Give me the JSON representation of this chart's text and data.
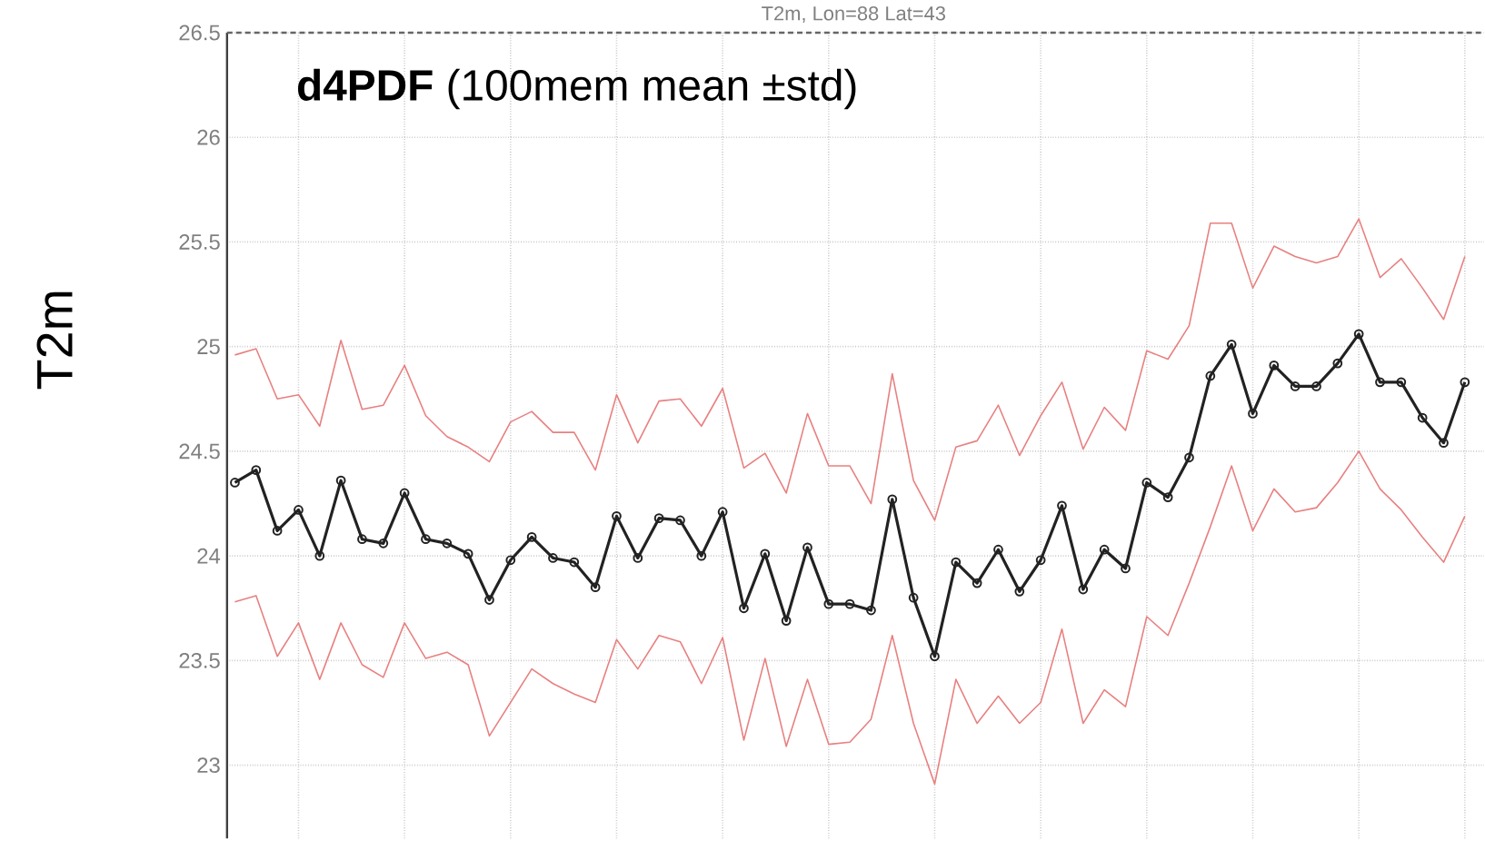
{
  "chart_data": {
    "type": "line",
    "title": "T2m, Lon=88  Lat=43",
    "ylabel": "T2m",
    "annotations": [
      "**d4PDF** (100mem mean ±std)"
    ],
    "categories": [
      null,
      null,
      null,
      null,
      null,
      null,
      null,
      null,
      null,
      null,
      null,
      null,
      null,
      null,
      null,
      null,
      null,
      null,
      null,
      null,
      null,
      null,
      null,
      null,
      null,
      null,
      null,
      null,
      null,
      null,
      null,
      null,
      null,
      null,
      null,
      null,
      null,
      null,
      null,
      null,
      null,
      null,
      null,
      null,
      null,
      null,
      null,
      null,
      null,
      null,
      null,
      null,
      null,
      null,
      null,
      null,
      null,
      null,
      null
    ],
    "ylim": [
      22.65,
      26.5
    ],
    "yticks": [
      23,
      23.5,
      24,
      24.5,
      25,
      25.5,
      26,
      26.5
    ],
    "grid": true,
    "series": [
      {
        "color": "#e88080",
        "marker": "none",
        "values": [
          24.96,
          24.99,
          24.75,
          24.77,
          24.62,
          25.03,
          24.7,
          24.72,
          24.91,
          24.67,
          24.57,
          24.52,
          24.45,
          24.64,
          24.69,
          24.59,
          24.59,
          24.41,
          24.77,
          24.54,
          24.74,
          24.75,
          24.62,
          24.8,
          24.42,
          24.49,
          24.3,
          24.68,
          24.43,
          24.43,
          24.25,
          24.87,
          24.36,
          24.17,
          24.52,
          24.55,
          24.72,
          24.48,
          24.67,
          24.83,
          24.51,
          24.71,
          24.6,
          24.98,
          24.94,
          25.1,
          25.59,
          25.59,
          25.28,
          25.48,
          25.43,
          25.4,
          25.43,
          25.61,
          25.33,
          25.42,
          25.28,
          25.13,
          25.43
        ]
      },
      {
        "color": "#e88080",
        "marker": "none",
        "values": [
          23.78,
          23.81,
          23.52,
          23.68,
          23.41,
          23.68,
          23.48,
          23.42,
          23.68,
          23.51,
          23.54,
          23.48,
          23.14,
          23.3,
          23.46,
          23.39,
          23.34,
          23.3,
          23.6,
          23.46,
          23.62,
          23.59,
          23.39,
          23.61,
          23.12,
          23.51,
          23.09,
          23.41,
          23.1,
          23.11,
          23.22,
          23.62,
          23.2,
          22.91,
          23.41,
          23.2,
          23.33,
          23.2,
          23.3,
          23.65,
          23.2,
          23.36,
          23.28,
          23.71,
          23.62,
          23.87,
          24.14,
          24.43,
          24.12,
          24.32,
          24.21,
          24.23,
          24.35,
          24.5,
          24.32,
          24.22,
          24.09,
          23.97,
          24.19
        ]
      },
      {
        "color": "#222222",
        "marker": "circle",
        "values": [
          24.35,
          24.41,
          24.12,
          24.22,
          24.0,
          24.36,
          24.08,
          24.06,
          24.3,
          24.08,
          24.06,
          24.01,
          23.79,
          23.98,
          24.09,
          23.99,
          23.97,
          23.85,
          24.19,
          23.99,
          24.18,
          24.17,
          24.0,
          24.21,
          23.75,
          24.01,
          23.69,
          24.04,
          23.77,
          23.77,
          23.74,
          24.27,
          23.8,
          23.52,
          23.97,
          23.87,
          24.03,
          23.83,
          23.98,
          24.24,
          23.84,
          24.03,
          23.94,
          24.35,
          24.28,
          24.47,
          24.86,
          25.01,
          24.68,
          24.91,
          24.81,
          24.81,
          24.92,
          25.06,
          24.83,
          24.83,
          24.66,
          24.54,
          24.83
        ]
      }
    ]
  }
}
